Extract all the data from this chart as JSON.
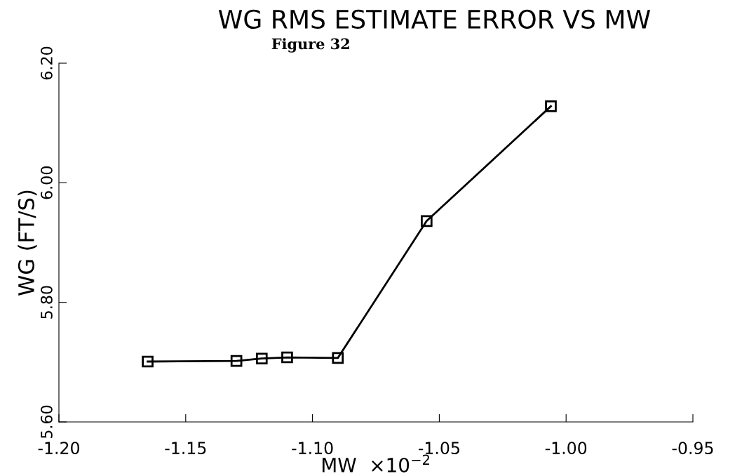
{
  "chart_data": {
    "type": "line",
    "title": "WG RMS ESTIMATE ERROR VS MW",
    "xlabel": "MW  ×10$^{−2}$",
    "ylabel": "WG (FT/S)",
    "annotations": [
      "Figure 32"
    ],
    "x": [
      -1.165,
      -1.13,
      -1.12,
      -1.11,
      -1.09,
      -1.055,
      -1.006
    ],
    "series": [
      {
        "color": "#000000",
        "values": [
          5.701,
          5.702,
          5.706,
          5.708,
          5.707,
          5.936,
          6.128
        ]
      }
    ],
    "marker": "square",
    "line_style": "solid",
    "grid": false,
    "legend": false,
    "xlim": [
      -1.2,
      -0.95
    ],
    "xticks": [
      {
        "value": -1.2,
        "label": "-1.20"
      },
      {
        "value": -1.15,
        "label": "-1.15"
      },
      {
        "value": -1.1,
        "label": "-1.10"
      },
      {
        "value": -1.05,
        "label": "-1.05"
      },
      {
        "value": -1.0,
        "label": "-1.00"
      },
      {
        "value": -0.95,
        "label": "-0.95"
      }
    ],
    "ylim": [
      5.6,
      6.2
    ],
    "yticks": [
      {
        "value": 5.6,
        "label": "5.60"
      },
      {
        "value": 5.8,
        "label": "5.80"
      },
      {
        "value": 6.0,
        "label": "6.00"
      },
      {
        "value": 6.2,
        "label": "6.20"
      }
    ]
  }
}
